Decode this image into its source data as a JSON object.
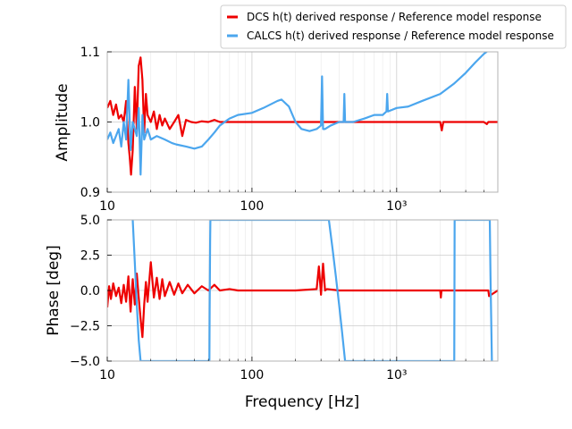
{
  "legend": {
    "placement": "top-right",
    "entries": [
      {
        "label": "DCS h(t) derived response / Reference model response",
        "color": "#ee0000"
      },
      {
        "label": "CALCS h(t) derived response / Reference model response",
        "color": "#4ba6ee"
      }
    ]
  },
  "chart_data": [
    {
      "type": "line",
      "panel": "amplitude",
      "xscale": "log",
      "xlim": [
        10,
        5000
      ],
      "ylim": [
        0.9,
        1.1
      ],
      "xticks": [
        10,
        100,
        1000
      ],
      "xtick_labels": [
        "10",
        "100",
        "10³"
      ],
      "yticks": [
        0.9,
        1.0,
        1.1
      ],
      "ytick_labels": [
        "0.9",
        "1.0",
        "1.1"
      ],
      "xlabel": "",
      "ylabel": "Amplitude",
      "grid": true,
      "series": [
        {
          "name": "DCS h(t) derived response / Reference model response",
          "color": "#ee0000",
          "x": [
            10,
            10.5,
            11,
            11.5,
            12,
            12.5,
            13,
            13.5,
            14,
            14.3,
            14.6,
            15,
            15.5,
            16,
            16.5,
            17,
            17.5,
            18,
            18.5,
            19,
            20,
            21,
            22,
            23,
            24,
            25,
            27,
            29,
            31,
            33,
            35,
            38,
            41,
            45,
            50,
            55,
            60,
            70,
            80,
            100,
            150,
            200,
            300,
            500,
            800,
            1000,
            1500,
            2000,
            2050,
            2100,
            3000,
            4000,
            4200,
            4300,
            5000
          ],
          "y": [
            1.02,
            1.03,
            1.01,
            1.025,
            1.005,
            1.01,
            1.0,
            1.03,
            0.97,
            0.95,
            0.925,
            0.96,
            1.05,
            0.99,
            1.08,
            1.092,
            1.06,
            0.985,
            1.04,
            1.01,
            1.0,
            1.015,
            0.99,
            1.01,
            0.995,
            1.005,
            0.99,
            1.0,
            1.01,
            0.98,
            1.003,
            1.0,
            0.999,
            1.001,
            1.0,
            1.003,
            1.0,
            1.0,
            1.0,
            1.0,
            1.0,
            1.0,
            1.0,
            1.0,
            1.0,
            1.0,
            1.0,
            1.0,
            0.988,
            1.0,
            1.0,
            1.0,
            0.997,
            1.0,
            1.0
          ]
        },
        {
          "name": "CALCS h(t) derived response / Reference model response",
          "color": "#4ba6ee",
          "x": [
            10,
            10.5,
            11,
            12,
            12.5,
            13,
            13.5,
            14,
            14.5,
            15,
            15.5,
            16,
            16.5,
            17,
            17.5,
            18,
            19,
            20,
            22,
            25,
            28,
            30,
            35,
            40,
            45,
            50,
            55,
            60,
            70,
            80,
            100,
            120,
            150,
            160,
            180,
            200,
            220,
            250,
            280,
            300,
            305,
            310,
            320,
            350,
            400,
            430,
            435,
            440,
            500,
            600,
            700,
            800,
            850,
            860,
            870,
            1000,
            1200,
            1500,
            2000,
            2500,
            3000,
            3500,
            4000,
            4500,
            5000
          ],
          "y": [
            0.975,
            0.985,
            0.97,
            0.99,
            0.965,
            1.0,
            0.975,
            1.06,
            0.96,
            1.0,
            0.99,
            0.98,
            1.02,
            0.925,
            1.01,
            0.975,
            0.99,
            0.975,
            0.98,
            0.975,
            0.97,
            0.968,
            0.965,
            0.962,
            0.965,
            0.975,
            0.985,
            0.995,
            1.005,
            1.01,
            1.013,
            1.02,
            1.03,
            1.032,
            1.022,
            1.0,
            0.99,
            0.987,
            0.99,
            0.995,
            1.065,
            0.99,
            0.99,
            0.995,
            1.0,
            1.0,
            1.04,
            1.0,
            1.0,
            1.005,
            1.01,
            1.01,
            1.015,
            1.04,
            1.015,
            1.02,
            1.022,
            1.03,
            1.04,
            1.055,
            1.07,
            1.085,
            1.097,
            1.105,
            1.115
          ]
        }
      ]
    },
    {
      "type": "line",
      "panel": "phase",
      "xscale": "log",
      "xlim": [
        10,
        5000
      ],
      "ylim": [
        -5.0,
        5.0
      ],
      "xticks": [
        10,
        100,
        1000
      ],
      "xtick_labels": [
        "10",
        "100",
        "10³"
      ],
      "yticks": [
        -5.0,
        -2.5,
        0.0,
        2.5,
        5.0
      ],
      "ytick_labels": [
        "−5.0",
        "−2.5",
        "0.0",
        "2.5",
        "5.0"
      ],
      "xlabel": "Frequency [Hz]",
      "ylabel": "Phase [deg]",
      "grid": true,
      "series": [
        {
          "name": "DCS h(t) derived response / Reference model response",
          "color": "#ee0000",
          "x": [
            10,
            10.3,
            10.6,
            11,
            11.5,
            12,
            12.5,
            13,
            13.5,
            14,
            14.5,
            15,
            15.5,
            16,
            16.5,
            17,
            17.5,
            18,
            18.5,
            19,
            20,
            21,
            22,
            23,
            24,
            25,
            27,
            29,
            31,
            33,
            36,
            40,
            45,
            50,
            55,
            60,
            70,
            80,
            100,
            150,
            200,
            280,
            290,
            300,
            310,
            320,
            330,
            400,
            500,
            1000,
            2000,
            2020,
            2040,
            3000,
            4000,
            4300,
            4350,
            5000
          ],
          "y": [
            -1.2,
            0.3,
            -0.6,
            0.5,
            -0.4,
            0.2,
            -0.9,
            0.4,
            -0.8,
            1.0,
            -1.5,
            0.8,
            -1.0,
            1.2,
            -0.5,
            -2.0,
            -3.3,
            -1.0,
            0.6,
            -0.8,
            2.0,
            -0.5,
            0.9,
            -0.6,
            0.8,
            -0.4,
            0.6,
            -0.3,
            0.5,
            -0.2,
            0.4,
            -0.2,
            0.3,
            0.0,
            0.4,
            0.0,
            0.1,
            0.0,
            0.0,
            0.0,
            0.0,
            0.1,
            1.7,
            -0.3,
            1.9,
            0.0,
            0.1,
            0.0,
            0.0,
            0.0,
            0.0,
            -0.5,
            0.0,
            0.0,
            0.0,
            0.0,
            -0.4,
            0.0
          ]
        },
        {
          "name": "CALCS h(t) derived response / Reference model response",
          "color": "#4ba6ee",
          "x": [
            15.0,
            15.5,
            16.0,
            16.5,
            17.0,
            50.8,
            51.0,
            51.2,
            51.4,
            51.6,
            340,
            360,
            380,
            400,
            420,
            440,
            2500,
            2505,
            2510,
            2515,
            4400,
            4450,
            4500,
            4550
          ],
          "y": [
            5.0,
            2.0,
            -1.0,
            -3.5,
            -5.0,
            -5.0,
            -1.5,
            1.0,
            3.5,
            5.0,
            5.0,
            3.0,
            1.0,
            -1.0,
            -3.0,
            -5.0,
            -5.0,
            -1.5,
            1.5,
            5.0,
            5.0,
            1.0,
            -2.0,
            -5.0
          ]
        }
      ]
    }
  ]
}
